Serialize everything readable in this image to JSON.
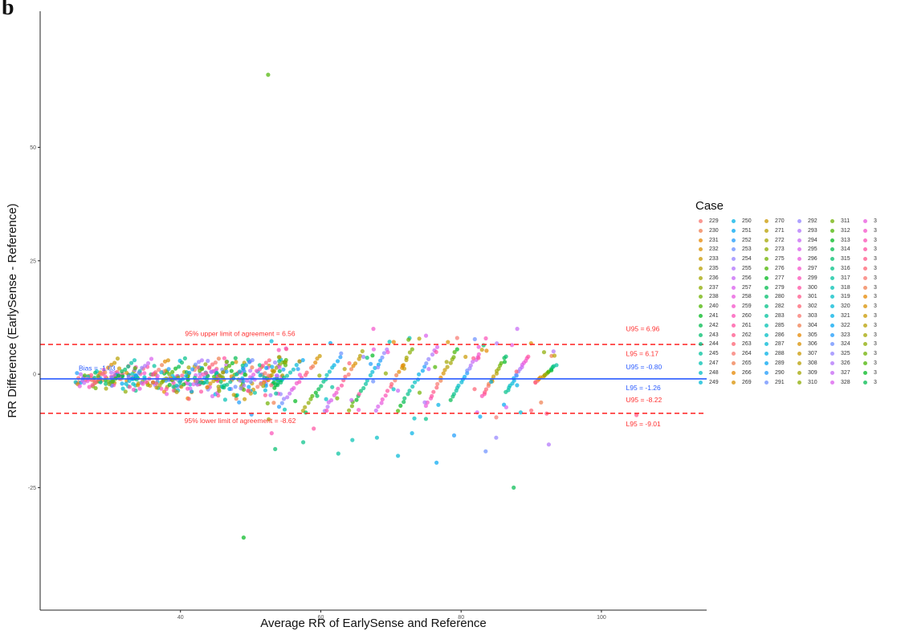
{
  "caption": {
    "panel_letter": "b"
  },
  "legend": {
    "title": "Case",
    "entries": [
      "229",
      "230",
      "231",
      "232",
      "233",
      "235",
      "236",
      "237",
      "238",
      "240",
      "241",
      "242",
      "243",
      "244",
      "245",
      "247",
      "248",
      "249",
      "250",
      "251",
      "252",
      "253",
      "254",
      "255",
      "256",
      "257",
      "258",
      "259",
      "260",
      "261",
      "262",
      "263",
      "264",
      "265",
      "266",
      "269",
      "270",
      "271",
      "272",
      "273",
      "275",
      "276",
      "277",
      "279",
      "280",
      "282",
      "283",
      "285",
      "286",
      "287",
      "288",
      "289",
      "290",
      "291",
      "292",
      "293",
      "294",
      "295",
      "296",
      "297",
      "299",
      "300",
      "301",
      "302",
      "303",
      "304",
      "305",
      "306",
      "307",
      "308",
      "309",
      "310",
      "311",
      "312",
      "313",
      "314",
      "315",
      "316",
      "317",
      "318",
      "319",
      "320",
      "321",
      "322",
      "323",
      "324",
      "325",
      "326",
      "327",
      "328",
      "3",
      "3",
      "3",
      "3",
      "3",
      "3",
      "3",
      "3",
      "3",
      "3",
      "3",
      "3",
      "3",
      "3",
      "3",
      "3",
      "3",
      "3"
    ],
    "colors": [
      "#f8766d",
      "#f07e4f",
      "#e58700",
      "#d89000",
      "#c99800",
      "#b79f00",
      "#a3a500",
      "#8cab00",
      "#6fb000",
      "#4ab400",
      "#00b81f",
      "#00bb4e",
      "#00be6c",
      "#00c086",
      "#00c19c",
      "#00c0b2",
      "#00bdc4",
      "#00b8d6",
      "#00b0e6",
      "#00a6f2",
      "#1c9bfb",
      "#6a8eff",
      "#9381ff",
      "#b072fb",
      "#c665f4",
      "#d95ced",
      "#e857dd",
      "#f452ca",
      "#fb4fb6",
      "#ff4fa0",
      "#ff5689",
      "#fd6172"
    ]
  },
  "chart_data": {
    "type": "scatter",
    "title": "",
    "xlabel": "Average RR of EarlySense and Reference",
    "ylabel": "RR Difference (EarlySense - Reference)",
    "xlim": [
      20,
      115
    ],
    "ylim": [
      -52,
      80
    ],
    "xticks": [
      40,
      60,
      80,
      100
    ],
    "yticks": [
      -25,
      0,
      25,
      50
    ],
    "grid": false,
    "legend_position": "right",
    "hlines": [
      {
        "y": 6.56,
        "style": "dashed",
        "color": "#ff3030"
      },
      {
        "y": -8.62,
        "style": "dashed",
        "color": "#ff3030"
      },
      {
        "y": -1.03,
        "style": "solid",
        "color": "#2a5bff"
      }
    ],
    "annotations": [
      {
        "text": "95% upper limit of agreement = 6.56",
        "x": 48.5,
        "y": 8.4,
        "color": "#ff3030"
      },
      {
        "text": "95% lower limit of agreement = -8.62",
        "x": 48.5,
        "y": -10.8,
        "color": "#ff3030"
      },
      {
        "text": "Bias = -1.03",
        "x": 25.5,
        "y": 0.8,
        "color": "#2a5bff"
      },
      {
        "text": "U95 = 6.96",
        "x": 103.5,
        "y": 9.5,
        "color": "#ff3030"
      },
      {
        "text": "L95 = 6.17",
        "x": 103.5,
        "y": 4.0,
        "color": "#ff3030"
      },
      {
        "text": "U95 = -0.80",
        "x": 103.5,
        "y": 1.1,
        "color": "#2a5bff"
      },
      {
        "text": "L95 = -1.26",
        "x": 103.5,
        "y": -3.5,
        "color": "#2a5bff"
      },
      {
        "text": "U95 = -8.22",
        "x": 103.5,
        "y": -6.2,
        "color": "#ff3030"
      },
      {
        "text": "L95 = -9.01",
        "x": 103.5,
        "y": -11.5,
        "color": "#ff3030"
      }
    ],
    "scatter_style": {
      "point_alpha": 0.7
    },
    "outliers": [
      {
        "x": 52.5,
        "y": 66.0
      },
      {
        "x": 49.0,
        "y": -36.0
      },
      {
        "x": 87.5,
        "y": -25.0
      },
      {
        "x": 53.5,
        "y": -16.5
      },
      {
        "x": 57.5,
        "y": -15.0
      },
      {
        "x": 62.5,
        "y": -17.5
      },
      {
        "x": 64.5,
        "y": -14.5
      },
      {
        "x": 68.0,
        "y": -14.0
      },
      {
        "x": 71.0,
        "y": -18.0
      },
      {
        "x": 73.0,
        "y": -13.0
      },
      {
        "x": 76.5,
        "y": -19.5
      },
      {
        "x": 79.0,
        "y": -13.5
      },
      {
        "x": 83.5,
        "y": -17.0
      },
      {
        "x": 85.0,
        "y": -14.0
      },
      {
        "x": 92.5,
        "y": -15.5
      },
      {
        "x": 88.0,
        "y": 10.0
      },
      {
        "x": 75.0,
        "y": 8.5
      },
      {
        "x": 82.5,
        "y": 6.0
      },
      {
        "x": 67.5,
        "y": 10.0
      },
      {
        "x": 53.0,
        "y": -13.0
      },
      {
        "x": 59.0,
        "y": -12.0
      },
      {
        "x": 105.0,
        "y": -9.0
      },
      {
        "x": 90.0,
        "y": -8.0
      }
    ],
    "diagonal_bands": [
      {
        "x_start": 54.0,
        "y_start": -7.0,
        "x_end": 60.0,
        "y_end": 4.0
      },
      {
        "x_start": 57.5,
        "y_start": -8.0,
        "x_end": 63.0,
        "y_end": 4.5
      },
      {
        "x_start": 60.5,
        "y_start": -8.0,
        "x_end": 66.0,
        "y_end": 5.0
      },
      {
        "x_start": 64.0,
        "y_start": -8.0,
        "x_end": 69.5,
        "y_end": 5.5
      },
      {
        "x_start": 68.0,
        "y_start": -8.0,
        "x_end": 73.0,
        "y_end": 5.5
      },
      {
        "x_start": 71.0,
        "y_start": -8.0,
        "x_end": 76.5,
        "y_end": 6.0
      },
      {
        "x_start": 75.0,
        "y_start": -7.0,
        "x_end": 79.5,
        "y_end": 5.5
      },
      {
        "x_start": 78.5,
        "y_start": -5.5,
        "x_end": 82.5,
        "y_end": 4.5
      },
      {
        "x_start": 83.0,
        "y_start": -5.0,
        "x_end": 86.5,
        "y_end": 4.0
      },
      {
        "x_start": 86.5,
        "y_start": -4.0,
        "x_end": 89.5,
        "y_end": 4.0
      },
      {
        "x_start": 90.5,
        "y_start": -2.0,
        "x_end": 93.5,
        "y_end": 2.0
      }
    ]
  }
}
